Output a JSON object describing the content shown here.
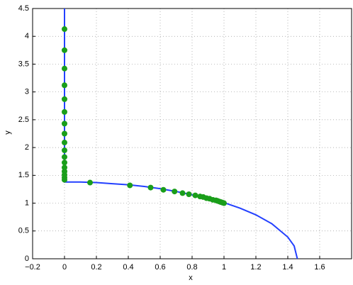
{
  "chart_data": {
    "type": "line",
    "xlabel": "x",
    "ylabel": "y",
    "xlim": [
      -0.2,
      1.8
    ],
    "ylim": [
      0,
      4.5
    ],
    "xticks": [
      {
        "value": -0.2,
        "label": "−0.2"
      },
      0,
      0.2,
      0.4,
      0.6,
      0.8,
      1,
      1.2,
      1.4,
      1.6
    ],
    "yticks": [
      0,
      0.5,
      1,
      1.5,
      2,
      2.5,
      3,
      3.5,
      4,
      4.5
    ],
    "grid": true,
    "series": [
      {
        "mode": "line",
        "color": "#2340ff",
        "x": [
          0,
          0,
          0.1,
          0.2,
          0.3,
          0.4,
          0.5,
          0.6,
          0.7,
          0.8,
          0.9,
          1.0,
          1.1,
          1.2,
          1.3,
          1.4,
          1.44,
          1.46
        ],
        "values": [
          4.5,
          1.38,
          1.38,
          1.37,
          1.35,
          1.33,
          1.3,
          1.26,
          1.21,
          1.15,
          1.09,
          1.01,
          0.91,
          0.79,
          0.63,
          0.39,
          0.23,
          0
        ]
      },
      {
        "mode": "markers",
        "color": "#1a9e1a",
        "x": [
          0,
          0,
          0,
          0,
          0,
          0,
          0,
          0,
          0,
          0,
          0,
          0,
          0,
          0,
          0,
          0,
          0,
          0.16,
          0.41,
          0.54,
          0.62,
          0.69,
          0.74,
          0.78,
          0.82,
          0.85,
          0.87,
          0.89,
          0.91,
          0.93,
          0.95,
          0.96,
          0.97,
          0.98,
          0.99,
          1.0
        ],
        "values": [
          4.13,
          3.75,
          3.42,
          3.12,
          2.87,
          2.64,
          2.43,
          2.25,
          2.09,
          1.95,
          1.83,
          1.73,
          1.64,
          1.57,
          1.51,
          1.46,
          1.42,
          1.37,
          1.32,
          1.28,
          1.24,
          1.21,
          1.18,
          1.16,
          1.14,
          1.12,
          1.11,
          1.09,
          1.08,
          1.06,
          1.05,
          1.04,
          1.03,
          1.02,
          1.01,
          1.0
        ]
      }
    ]
  }
}
